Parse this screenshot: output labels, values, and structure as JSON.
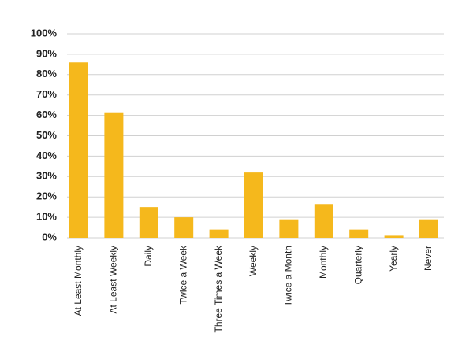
{
  "chart_data": {
    "type": "bar",
    "categories": [
      "At Least Monthly",
      "At Least Weekly",
      "Daily",
      "Twice a Week",
      "Three Times a Week",
      "Weekly",
      "Twice a Month",
      "Monthly",
      "Quarterly",
      "Yearly",
      "Never"
    ],
    "values": [
      86,
      61.5,
      15,
      10,
      4,
      32,
      9,
      16.5,
      4,
      1,
      9
    ],
    "color": "#f5b81c",
    "ylim": [
      0,
      100
    ],
    "yticks": [
      {
        "value": 0,
        "label": "0%"
      },
      {
        "value": 10,
        "label": "10%"
      },
      {
        "value": 20,
        "label": "20%"
      },
      {
        "value": 30,
        "label": "30%"
      },
      {
        "value": 40,
        "label": "40%"
      },
      {
        "value": 50,
        "label": "50%"
      },
      {
        "value": 60,
        "label": "60%"
      },
      {
        "value": 70,
        "label": "70%"
      },
      {
        "value": 80,
        "label": "80%"
      },
      {
        "value": 90,
        "label": "90%"
      },
      {
        "value": 100,
        "label": "100%"
      }
    ],
    "grid": true
  }
}
